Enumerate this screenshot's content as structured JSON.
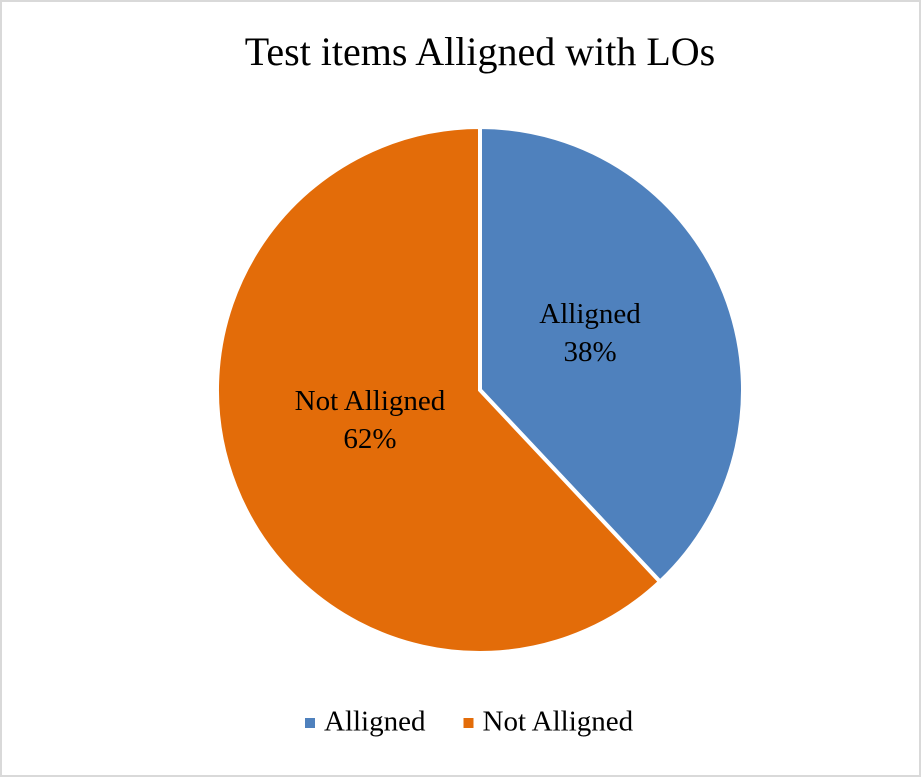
{
  "chart_data": {
    "type": "pie",
    "title": "Test items Alligned with LOs",
    "categories": [
      "Alligned",
      "Not Alligned"
    ],
    "values": [
      38,
      62
    ],
    "value_labels": [
      "38%",
      "62%"
    ],
    "colors": [
      "#4f81bd",
      "#e36c09"
    ],
    "legend": "bottom"
  }
}
